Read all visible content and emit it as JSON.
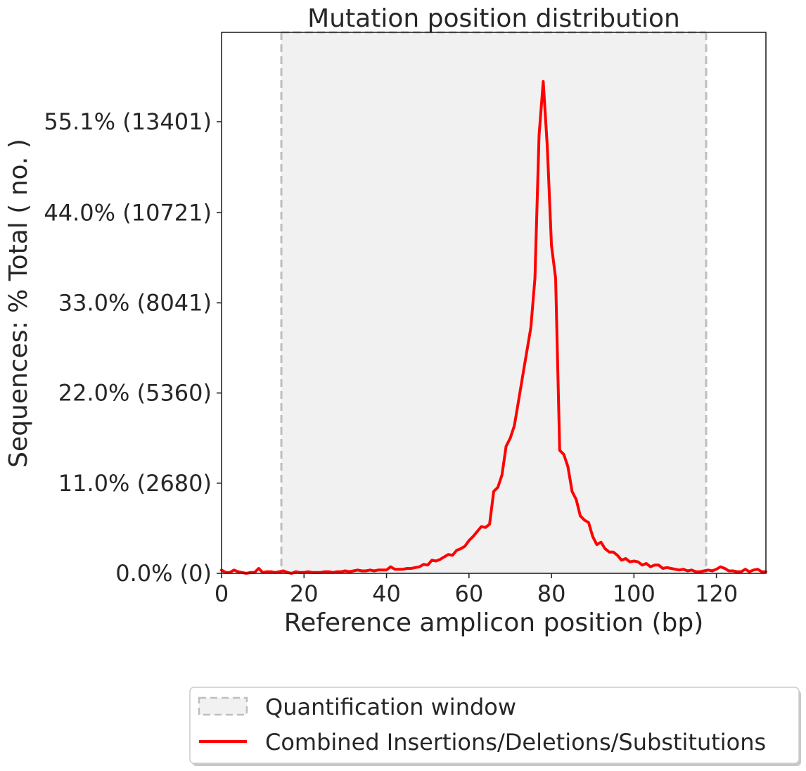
{
  "chart_data": {
    "type": "line",
    "title": "Mutation position distribution",
    "xlabel": "Reference amplicon position (bp)",
    "ylabel": "Sequences: % Total ( no. )",
    "xlim": [
      0,
      132
    ],
    "ylim": [
      0,
      66
    ],
    "x_ticks": [
      0,
      20,
      40,
      60,
      80,
      100,
      120
    ],
    "y_ticks": [
      {
        "value": 0.0,
        "label": "0.0% (0)"
      },
      {
        "value": 11.0,
        "label": "11.0% (2680)"
      },
      {
        "value": 22.0,
        "label": "22.0% (5360)"
      },
      {
        "value": 33.0,
        "label": "33.0% (8041)"
      },
      {
        "value": 44.0,
        "label": "44.0% (10721)"
      },
      {
        "value": 55.1,
        "label": "55.1% (13401)"
      }
    ],
    "grid": false,
    "legend_position": "below",
    "quantification_window": {
      "label": "Quantification window",
      "start": 14.5,
      "end": 117.5,
      "color": "#bebebe",
      "fill": "#f1f1f1"
    },
    "series": [
      {
        "name": "Combined Insertions/Deletions/Substitutions",
        "color": "#ff0000",
        "x": [
          0,
          1,
          2,
          3,
          4,
          5,
          6,
          7,
          8,
          9,
          10,
          11,
          12,
          13,
          14,
          15,
          16,
          17,
          18,
          19,
          20,
          21,
          22,
          23,
          24,
          25,
          26,
          27,
          28,
          29,
          30,
          31,
          32,
          33,
          34,
          35,
          36,
          37,
          38,
          39,
          40,
          41,
          42,
          43,
          44,
          45,
          46,
          47,
          48,
          49,
          50,
          51,
          52,
          53,
          54,
          55,
          56,
          57,
          58,
          59,
          60,
          61,
          62,
          63,
          64,
          65,
          66,
          67,
          68,
          69,
          70,
          71,
          72,
          73,
          74,
          75,
          76,
          77,
          78,
          79,
          80,
          81,
          82,
          83,
          84,
          85,
          86,
          87,
          88,
          89,
          90,
          91,
          92,
          93,
          94,
          95,
          96,
          97,
          98,
          99,
          100,
          101,
          102,
          103,
          104,
          105,
          106,
          107,
          108,
          109,
          110,
          111,
          112,
          113,
          114,
          115,
          116,
          117,
          118,
          119,
          120,
          121,
          122,
          123,
          124,
          125,
          126,
          127,
          128,
          129,
          130,
          131,
          132
        ],
        "y": [
          0.4,
          0.1,
          0.1,
          0.4,
          0.2,
          0.1,
          0.0,
          0.1,
          0.1,
          0.6,
          0.1,
          0.2,
          0.2,
          0.1,
          0.2,
          0.3,
          0.1,
          0.0,
          0.2,
          0.1,
          0.1,
          0.2,
          0.1,
          0.1,
          0.1,
          0.2,
          0.2,
          0.1,
          0.2,
          0.2,
          0.3,
          0.2,
          0.3,
          0.4,
          0.3,
          0.3,
          0.4,
          0.3,
          0.4,
          0.4,
          0.4,
          0.8,
          0.5,
          0.5,
          0.5,
          0.6,
          0.6,
          0.7,
          0.8,
          1.1,
          1.0,
          1.6,
          1.5,
          1.7,
          2.0,
          2.3,
          2.2,
          2.8,
          3.0,
          3.3,
          4.0,
          4.5,
          5.1,
          5.7,
          5.6,
          6.0,
          10.0,
          10.5,
          12.0,
          15.5,
          16.5,
          18.0,
          21.0,
          24.0,
          27.0,
          30.0,
          36.0,
          53.5,
          60.0,
          52.0,
          40.0,
          36.0,
          15.0,
          14.5,
          13.0,
          10.0,
          9.0,
          7.0,
          6.5,
          6.2,
          4.5,
          3.5,
          3.8,
          3.0,
          2.6,
          2.6,
          2.2,
          1.6,
          1.8,
          1.4,
          1.5,
          1.4,
          1.0,
          1.2,
          0.8,
          1.0,
          1.0,
          0.6,
          0.7,
          0.6,
          0.5,
          0.4,
          0.5,
          0.3,
          0.4,
          0.2,
          0.2,
          0.3,
          0.4,
          0.3,
          0.5,
          0.8,
          0.6,
          0.3,
          0.3,
          0.2,
          0.2,
          0.5,
          0.2,
          0.4,
          0.5,
          0.2,
          0.2
        ]
      }
    ]
  }
}
